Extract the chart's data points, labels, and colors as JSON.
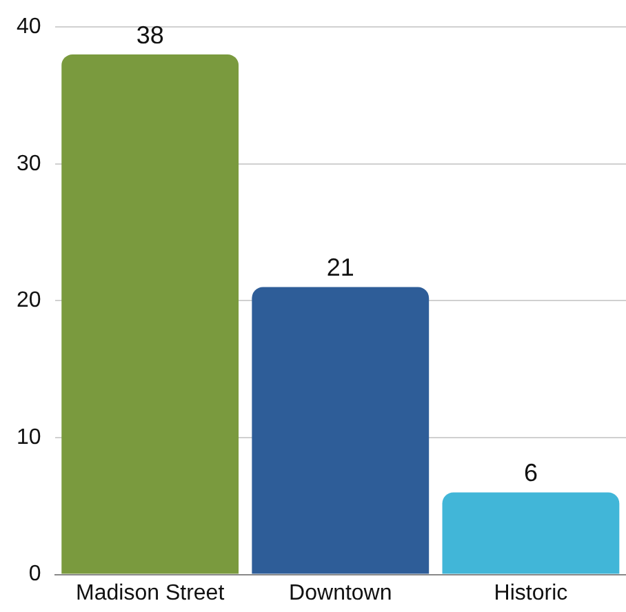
{
  "chart_data": {
    "type": "bar",
    "categories": [
      "Madison Street",
      "Downtown",
      "Historic"
    ],
    "values": [
      38,
      21,
      6
    ],
    "colors": [
      "#7a9a3e",
      "#2e5d98",
      "#41b6d8"
    ],
    "ylim": [
      0,
      40
    ],
    "yticks": [
      0,
      10,
      20,
      30,
      40
    ],
    "grid": "y",
    "data_labels": true,
    "legend": false
  }
}
